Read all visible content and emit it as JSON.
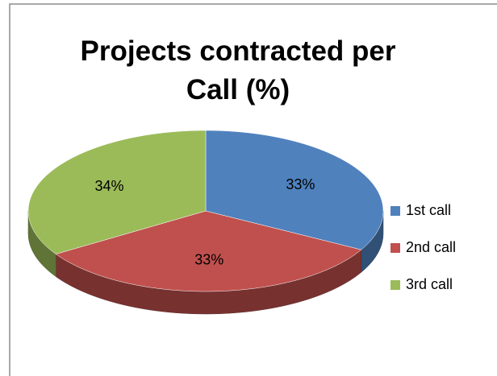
{
  "chart_data": {
    "type": "pie",
    "title": "Projects contracted per Call (%)",
    "categories": [
      "1st call",
      "2nd call",
      "3rd call"
    ],
    "values": [
      33,
      33,
      34
    ],
    "value_labels": [
      "33%",
      "33%",
      "34%"
    ],
    "colors": [
      "#4f81bd",
      "#c0504d",
      "#9bbb59"
    ],
    "legend": "right"
  }
}
